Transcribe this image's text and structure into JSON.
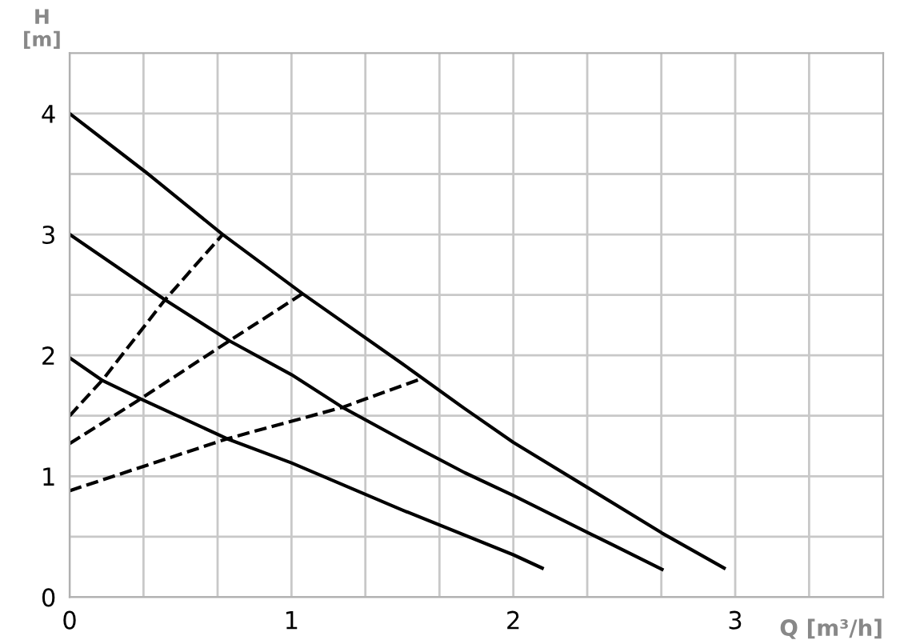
{
  "chart_data": {
    "type": "line",
    "xlabel": "Q [m³/h]",
    "ylabel": "H\n[m]",
    "xlim": [
      0,
      3.667
    ],
    "ylim": [
      0,
      4.5
    ],
    "xticks": [
      0,
      {
        "value": 0.333,
        "label": null
      },
      {
        "value": 0.667,
        "label": null
      },
      1,
      {
        "value": 1.333,
        "label": null
      },
      {
        "value": 1.667,
        "label": null
      },
      2,
      {
        "value": 2.333,
        "label": null
      },
      {
        "value": 2.667,
        "label": null
      },
      3,
      {
        "value": 3.333,
        "label": null
      }
    ],
    "yticks": [
      0,
      {
        "value": 0.5,
        "label": null
      },
      1,
      {
        "value": 1.5,
        "label": null
      },
      2,
      {
        "value": 2.5,
        "label": null
      },
      3,
      {
        "value": 3.5,
        "label": null
      },
      4
    ],
    "grid": true,
    "marker": "none",
    "series": [
      {
        "color": "#000000",
        "line_style": "solid",
        "x": [
          0,
          0.34,
          0.69,
          1.05,
          1.5,
          1.78,
          2.0,
          2.34,
          2.67,
          2.95
        ],
        "values": [
          4.0,
          3.52,
          3.0,
          2.51,
          1.93,
          1.56,
          1.28,
          0.9,
          0.53,
          0.24
        ]
      },
      {
        "color": "#000000",
        "line_style": "solid",
        "x": [
          0,
          0.43,
          0.72,
          1.0,
          1.23,
          1.5,
          1.78,
          2.0,
          2.34,
          2.67
        ],
        "values": [
          3.0,
          2.46,
          2.12,
          1.84,
          1.57,
          1.3,
          1.03,
          0.84,
          0.53,
          0.23
        ]
      },
      {
        "color": "#000000",
        "line_style": "solid",
        "x": [
          0,
          0.15,
          0.32,
          0.71,
          1.0,
          1.5,
          2.0,
          2.13
        ],
        "values": [
          1.98,
          1.79,
          1.64,
          1.31,
          1.11,
          0.72,
          0.35,
          0.24
        ]
      },
      {
        "color": "#000000",
        "line_style": "dashed",
        "x": [
          0,
          0.15,
          0.43,
          0.69
        ],
        "values": [
          1.5,
          1.8,
          2.46,
          3.0
        ]
      },
      {
        "color": "#000000",
        "line_style": "dashed",
        "x": [
          0,
          0.32,
          0.72,
          1.05
        ],
        "values": [
          1.27,
          1.64,
          2.12,
          2.51
        ]
      },
      {
        "color": "#000000",
        "line_style": "dashed",
        "x": [
          0,
          0.71,
          1.23,
          1.59
        ],
        "values": [
          0.88,
          1.31,
          1.57,
          1.81
        ]
      }
    ]
  }
}
